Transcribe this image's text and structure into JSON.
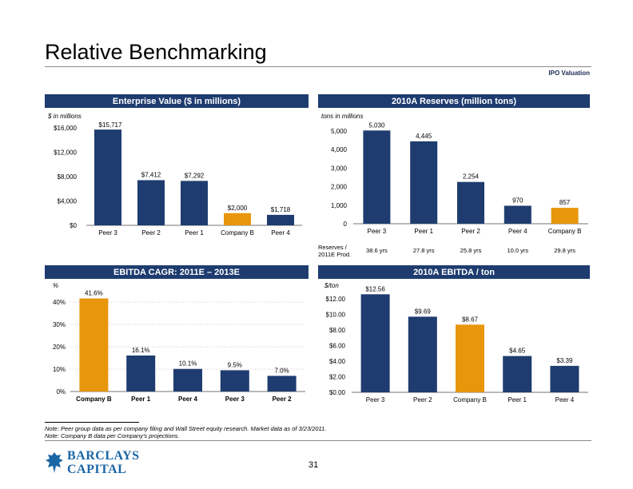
{
  "page": {
    "title": "Relative Benchmarking",
    "section_tag": "IPO Valuation",
    "notes": [
      "Note: Peer group data as per company filing and Wall Street equity research. Market data as of 3/23/2011.",
      "Note: Company B data per Company's projections."
    ],
    "logo": {
      "line1": "BARCLAYS",
      "line2": "CAPITAL"
    },
    "page_number": "31"
  },
  "colors": {
    "navy": "#1e3c6f",
    "orange": "#e8960c",
    "header": "#1e3c6f"
  },
  "chart_data": [
    {
      "id": "ev",
      "type": "bar",
      "title": "Enterprise Value ($ in millions)",
      "ylabel": "$ in millions",
      "ylim": [
        0,
        16000
      ],
      "yticks": [
        0,
        4000,
        8000,
        12000,
        16000
      ],
      "ytick_labels": [
        "$0",
        "$4,000",
        "$8,000",
        "$12,000",
        "$16,000"
      ],
      "categories": [
        "Peer 3",
        "Peer 2",
        "Peer 1",
        "Company B",
        "Peer 4"
      ],
      "values": [
        15717,
        7412,
        7292,
        2000,
        1718
      ],
      "value_labels": [
        "$15,717",
        "$7,412",
        "$7,292",
        "$2,000",
        "$1,718"
      ],
      "highlight": "Company B"
    },
    {
      "id": "reserves",
      "type": "bar",
      "title": "2010A Reserves (million tons)",
      "ylabel": "tons in millions",
      "ylim": [
        0,
        5000
      ],
      "yticks": [
        0,
        1000,
        2000,
        3000,
        4000,
        5000
      ],
      "ytick_labels": [
        "0",
        "1,000",
        "2,000",
        "3,000",
        "4,000",
        "5,000"
      ],
      "categories": [
        "Peer 3",
        "Peer 1",
        "Peer 2",
        "Peer 4",
        "Company B"
      ],
      "values": [
        5030,
        4445,
        2254,
        970,
        857
      ],
      "value_labels": [
        "5,030",
        "4,445",
        "2,254",
        "970",
        "857"
      ],
      "highlight": "Company B",
      "extra_row": {
        "label_line1": "Reserves /",
        "label_line2": "2011E Prod.",
        "values": [
          "38.6 yrs",
          "27.8 yrs",
          "25.8 yrs",
          "10.0 yrs",
          "29.8 yrs"
        ]
      }
    },
    {
      "id": "cagr",
      "type": "bar",
      "title": "EBITDA CAGR: 2011E – 2013E",
      "ylabel": "%",
      "ylim": [
        0,
        45
      ],
      "yticks": [
        0,
        10,
        20,
        30,
        40
      ],
      "ytick_labels": [
        "0%",
        "10%",
        "20%",
        "30%",
        "40%"
      ],
      "categories": [
        "Company B",
        "Peer 1",
        "Peer 4",
        "Peer 3",
        "Peer 2"
      ],
      "values": [
        41.6,
        16.1,
        10.1,
        9.5,
        7.0
      ],
      "value_labels": [
        "41.6%",
        "16.1%",
        "10.1%",
        "9.5%",
        "7.0%"
      ],
      "highlight": "Company B"
    },
    {
      "id": "ebitda_ton",
      "type": "bar",
      "title": "2010A EBITDA / ton",
      "ylabel": "$/ton",
      "ylim": [
        0,
        13
      ],
      "yticks": [
        0,
        2,
        4,
        6,
        8,
        10,
        12
      ],
      "ytick_labels": [
        "$0.00",
        "$2.00",
        "$4.00",
        "$6.00",
        "$8.00",
        "$10.00",
        "$12.00"
      ],
      "categories": [
        "Peer 3",
        "Peer 2",
        "Company B",
        "Peer 1",
        "Peer 4"
      ],
      "values": [
        12.56,
        9.69,
        8.67,
        4.65,
        3.39
      ],
      "value_labels": [
        "$12.56",
        "$9.69",
        "$8.67",
        "$4.65",
        "$3.39"
      ],
      "highlight": "Company B"
    }
  ]
}
